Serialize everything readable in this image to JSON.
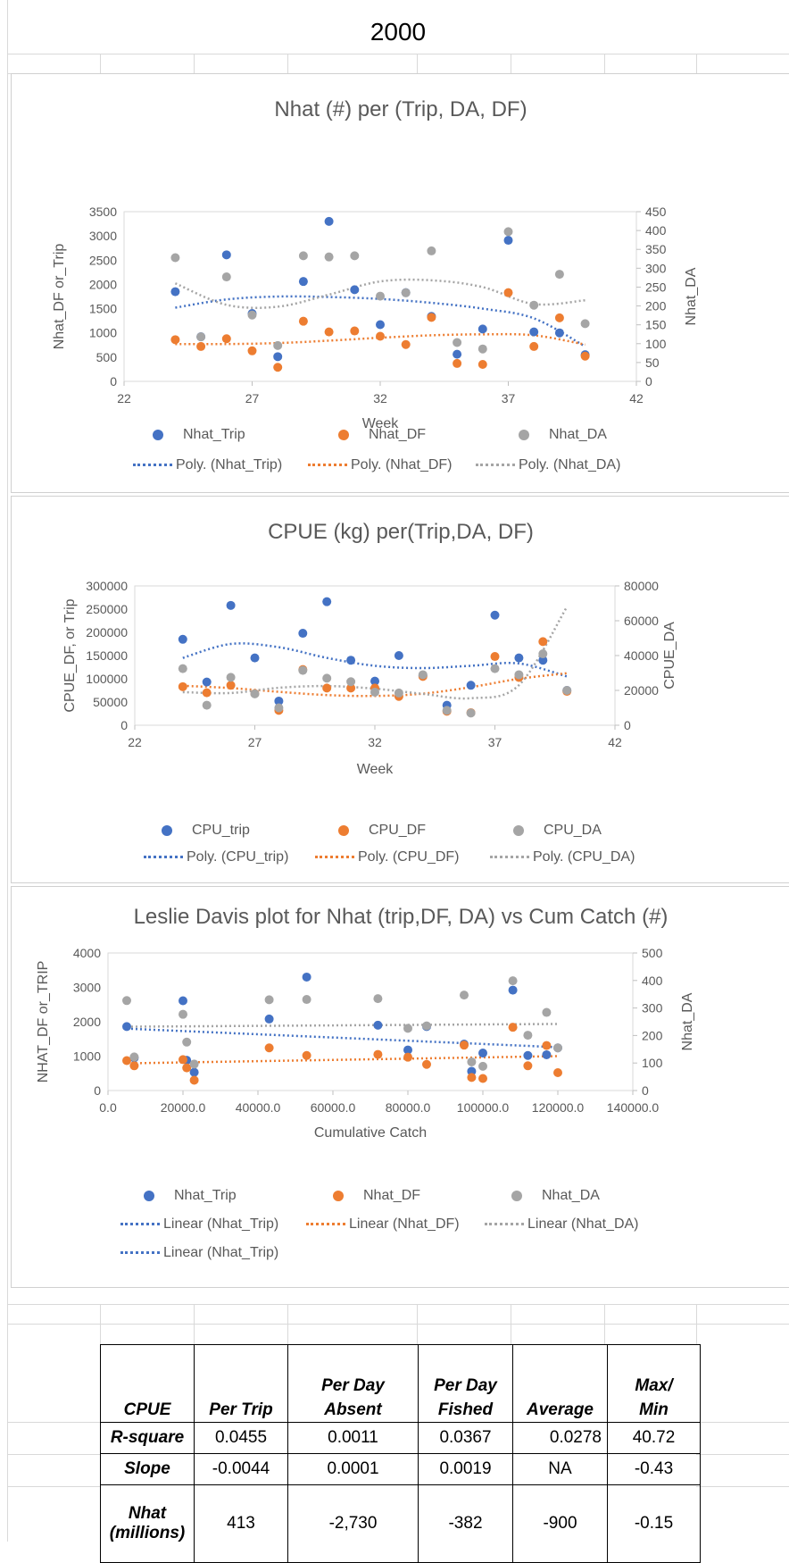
{
  "page": {
    "title": "2000"
  },
  "colors": {
    "trip": "#4472C4",
    "df": "#ED7D31",
    "da": "#A5A5A5",
    "axis": "#595959",
    "grid": "#d9d9d9"
  },
  "charts": [
    {
      "title": "Nhat (#) per (Trip, DA, DF)",
      "xlabel": "Week",
      "ylabel_left": "Nhat_DF or_Trip",
      "ylabel_right": "Nhat_DA",
      "x_ticks": [
        "22",
        "27",
        "32",
        "37",
        "42"
      ],
      "y_left_ticks": [
        "0",
        "500",
        "1000",
        "1500",
        "2000",
        "2500",
        "3000",
        "3500"
      ],
      "y_right_ticks": [
        "0",
        "50",
        "100",
        "150",
        "200",
        "250",
        "300",
        "350",
        "400",
        "450"
      ],
      "legend_markers": [
        "Nhat_Trip",
        "Nhat_DF",
        "Nhat_DA"
      ],
      "legend_lines": [
        "Poly. (Nhat_Trip)",
        "Poly. (Nhat_DF)",
        "Poly. (Nhat_DA)"
      ]
    },
    {
      "title": "CPUE (kg)  per(Trip,DA, DF)",
      "xlabel": "Week",
      "ylabel_left": "CPUE_DF, or Trip",
      "ylabel_right": "CPUE_DA",
      "x_ticks": [
        "22",
        "27",
        "32",
        "37",
        "42"
      ],
      "y_left_ticks": [
        "0",
        "50000",
        "100000",
        "150000",
        "200000",
        "250000",
        "300000"
      ],
      "y_right_ticks": [
        "0",
        "20000",
        "40000",
        "60000",
        "80000"
      ],
      "legend_markers": [
        "CPU_trip",
        "CPU_DF",
        "CPU_DA"
      ],
      "legend_lines": [
        "Poly. (CPU_trip)",
        "Poly. (CPU_DF)",
        "Poly. (CPU_DA)"
      ]
    },
    {
      "title": "Leslie Davis plot for Nhat (trip,DF, DA) vs Cum Catch (#)",
      "xlabel": "Cumulative Catch",
      "ylabel_left": "NHAT_DF or_TRIP",
      "ylabel_right": "Nhat_DA",
      "x_ticks": [
        "0.0",
        "20000.0",
        "40000.0",
        "60000.0",
        "80000.0",
        "100000.0",
        "120000.0",
        "140000.0"
      ],
      "y_left_ticks": [
        "0",
        "1000",
        "2000",
        "3000",
        "4000"
      ],
      "y_right_ticks": [
        "0",
        "100",
        "200",
        "300",
        "400",
        "500"
      ],
      "legend_markers": [
        "Nhat_Trip",
        "Nhat_DF",
        "Nhat_DA"
      ],
      "legend_lines": [
        "Linear (Nhat_Trip)",
        "Linear (Nhat_DF)",
        "Linear (Nhat_DA)"
      ],
      "legend_extra": "Linear (Nhat_Trip)"
    }
  ],
  "chart_data": [
    {
      "type": "scatter",
      "title": "Nhat (#) per (Trip, DA, DF)",
      "xlabel": "Week",
      "ylabel": "Nhat_DF or_Trip",
      "y2label": "Nhat_DA",
      "xlim": [
        22,
        42
      ],
      "ylim": [
        0,
        3500
      ],
      "y2lim": [
        0,
        450
      ],
      "legend": "bottom",
      "series": [
        {
          "name": "Nhat_Trip",
          "axis": "left",
          "x": [
            24,
            25,
            26,
            27,
            28,
            29,
            30,
            31,
            32,
            33,
            34,
            35,
            36,
            37,
            38,
            39,
            40
          ],
          "y": [
            1850,
            920,
            2610,
            1400,
            510,
            2060,
            3300,
            1890,
            1170,
            1830,
            1340,
            560,
            1080,
            2910,
            1020,
            1000,
            550
          ]
        },
        {
          "name": "Nhat_DF",
          "axis": "left",
          "x": [
            24,
            25,
            26,
            27,
            28,
            29,
            30,
            31,
            32,
            33,
            34,
            35,
            36,
            37,
            38,
            39,
            40
          ],
          "y": [
            860,
            720,
            880,
            630,
            290,
            1240,
            1020,
            1040,
            930,
            760,
            1320,
            370,
            350,
            1830,
            720,
            1310,
            520
          ]
        },
        {
          "name": "Nhat_DA",
          "axis": "right",
          "x": [
            24,
            25,
            26,
            27,
            28,
            29,
            30,
            31,
            32,
            33,
            34,
            35,
            36,
            37,
            38,
            39,
            40
          ],
          "y": [
            328,
            118,
            277,
            176,
            95,
            333,
            330,
            333,
            226,
            235,
            346,
            103,
            86,
            397,
            202,
            284,
            153
          ]
        }
      ],
      "trendlines": [
        {
          "name": "Poly. (Nhat_Trip)",
          "axis": "left",
          "x": [
            24,
            26,
            28,
            30,
            32,
            34,
            36,
            38,
            40
          ],
          "y": [
            1520,
            1690,
            1750,
            1740,
            1700,
            1620,
            1500,
            1300,
            720
          ]
        },
        {
          "name": "Poly. (Nhat_DF)",
          "axis": "left",
          "x": [
            24,
            26,
            28,
            30,
            32,
            34,
            36,
            38,
            40
          ],
          "y": [
            770,
            770,
            790,
            840,
            900,
            950,
            970,
            950,
            760
          ]
        },
        {
          "name": "Poly. (Nhat_DA)",
          "axis": "right",
          "x": [
            24,
            26,
            28,
            30,
            32,
            34,
            36,
            38,
            40
          ],
          "y": [
            260,
            203,
            198,
            230,
            265,
            268,
            250,
            205,
            215
          ]
        }
      ]
    },
    {
      "type": "scatter",
      "title": "CPUE (kg)  per(Trip,DA, DF)",
      "xlabel": "Week",
      "ylabel": "CPUE_DF, or Trip",
      "y2label": "CPUE_DA",
      "xlim": [
        22,
        42
      ],
      "ylim": [
        0,
        300000
      ],
      "y2lim": [
        0,
        80000
      ],
      "legend": "bottom",
      "series": [
        {
          "name": "CPU_trip",
          "axis": "left",
          "x": [
            24,
            25,
            26,
            27,
            28,
            29,
            30,
            31,
            32,
            33,
            34,
            35,
            36,
            37,
            38,
            39,
            40
          ],
          "y": [
            185000,
            93000,
            258000,
            145000,
            52000,
            198000,
            266000,
            140000,
            95000,
            150000,
            107000,
            43000,
            86000,
            237000,
            145000,
            140000,
            75000
          ]
        },
        {
          "name": "CPU_DF",
          "axis": "left",
          "x": [
            24,
            25,
            26,
            27,
            28,
            29,
            30,
            31,
            32,
            33,
            34,
            35,
            36,
            37,
            38,
            39,
            40
          ],
          "y": [
            83000,
            70000,
            86000,
            68000,
            32000,
            120000,
            80000,
            80000,
            80000,
            62000,
            105000,
            30000,
            27000,
            148000,
            103000,
            180000,
            73000
          ]
        },
        {
          "name": "CPU_DA",
          "axis": "right",
          "x": [
            24,
            25,
            26,
            27,
            28,
            29,
            30,
            31,
            32,
            33,
            34,
            35,
            36,
            37,
            38,
            39,
            40
          ],
          "y": [
            32500,
            11500,
            27500,
            18000,
            10000,
            31500,
            27000,
            25000,
            19000,
            18500,
            29000,
            8500,
            7000,
            32500,
            29000,
            41000,
            20000
          ]
        }
      ],
      "trendlines": [
        {
          "name": "Poly. (CPU_trip)",
          "axis": "left",
          "x": [
            24,
            26,
            28,
            30,
            32,
            34,
            36,
            38,
            40
          ],
          "y": [
            145000,
            175000,
            168000,
            145000,
            128000,
            123000,
            128000,
            133000,
            105000
          ]
        },
        {
          "name": "Poly. (CPU_DF)",
          "axis": "left",
          "x": [
            24,
            26,
            28,
            30,
            32,
            34,
            36,
            38,
            40
          ],
          "y": [
            85000,
            80000,
            72000,
            65000,
            63000,
            68000,
            82000,
            100000,
            112000
          ]
        },
        {
          "name": "Poly. (CPU_DA)",
          "axis": "right",
          "x": [
            24,
            26,
            28,
            30,
            32,
            34,
            36,
            38,
            40
          ],
          "y": [
            19000,
            18500,
            21500,
            22500,
            21000,
            18000,
            15500,
            23000,
            68000
          ]
        }
      ]
    },
    {
      "type": "scatter",
      "title": "Leslie Davis plot for Nhat (trip,DF, DA) vs Cum Catch (#)",
      "xlabel": "Cumulative Catch",
      "ylabel": "NHAT_DF or_TRIP",
      "y2label": "Nhat_DA",
      "xlim": [
        0,
        140000
      ],
      "ylim": [
        0,
        4000
      ],
      "y2lim": [
        0,
        500
      ],
      "legend": "bottom",
      "series": [
        {
          "name": "Nhat_Trip",
          "axis": "left",
          "x": [
            5000,
            7000,
            20000,
            21000,
            23000,
            43000,
            53000,
            72000,
            80000,
            85000,
            95000,
            97000,
            100000,
            108000,
            112000,
            117000,
            120000
          ],
          "y": [
            1860,
            950,
            2610,
            880,
            530,
            2080,
            3300,
            1900,
            1180,
            1860,
            1350,
            560,
            1090,
            2920,
            1020,
            1040,
            1240
          ]
        },
        {
          "name": "Nhat_DF",
          "axis": "left",
          "x": [
            5000,
            7000,
            20000,
            21000,
            23000,
            43000,
            53000,
            72000,
            80000,
            85000,
            95000,
            97000,
            100000,
            108000,
            112000,
            117000,
            120000
          ],
          "y": [
            870,
            720,
            900,
            660,
            300,
            1240,
            1020,
            1050,
            970,
            760,
            1320,
            380,
            350,
            1840,
            720,
            1310,
            520
          ]
        },
        {
          "name": "Nhat_DA",
          "axis": "right",
          "x": [
            5000,
            7000,
            20000,
            21000,
            23000,
            43000,
            53000,
            72000,
            80000,
            85000,
            95000,
            97000,
            100000,
            108000,
            112000,
            117000,
            120000
          ],
          "y": [
            327,
            122,
            277,
            176,
            96,
            330,
            331,
            334,
            226,
            235,
            347,
            104,
            88,
            399,
            201,
            284,
            155
          ]
        }
      ],
      "trendlines": [
        {
          "name": "Linear (Nhat_Trip)",
          "axis": "left",
          "x": [
            5000,
            120000
          ],
          "y": [
            1800,
            1260
          ]
        },
        {
          "name": "Linear (Nhat_DF)",
          "axis": "left",
          "x": [
            5000,
            120000
          ],
          "y": [
            790,
            1000
          ]
        },
        {
          "name": "Linear (Nhat_DA)",
          "axis": "right",
          "x": [
            5000,
            120000
          ],
          "y": [
            232,
            242
          ]
        }
      ]
    }
  ],
  "table": {
    "headers": [
      "CPUE",
      "Per Trip",
      "Per Day Absent",
      "Per Day Fished",
      "Average",
      "Max/ Min"
    ],
    "header_lines": [
      [
        "CPUE"
      ],
      [
        "Per Trip"
      ],
      [
        "Per Day",
        "Absent"
      ],
      [
        "Per Day",
        "Fished"
      ],
      [
        "Average"
      ],
      [
        "Max/",
        "Min"
      ]
    ],
    "rows": [
      {
        "label": "R-square",
        "values": [
          "0.0455",
          "0.0011",
          "0.0367",
          "0.0278",
          "40.72"
        ]
      },
      {
        "label": "Slope",
        "values": [
          "-0.0044",
          "0.0001",
          "0.0019",
          "NA",
          "-0.43"
        ]
      },
      {
        "label": "Nhat (millions)",
        "label_lines": [
          "Nhat",
          "(millions)"
        ],
        "values": [
          "413",
          "-2,730",
          "-382",
          "-900",
          "-0.15"
        ]
      }
    ]
  }
}
